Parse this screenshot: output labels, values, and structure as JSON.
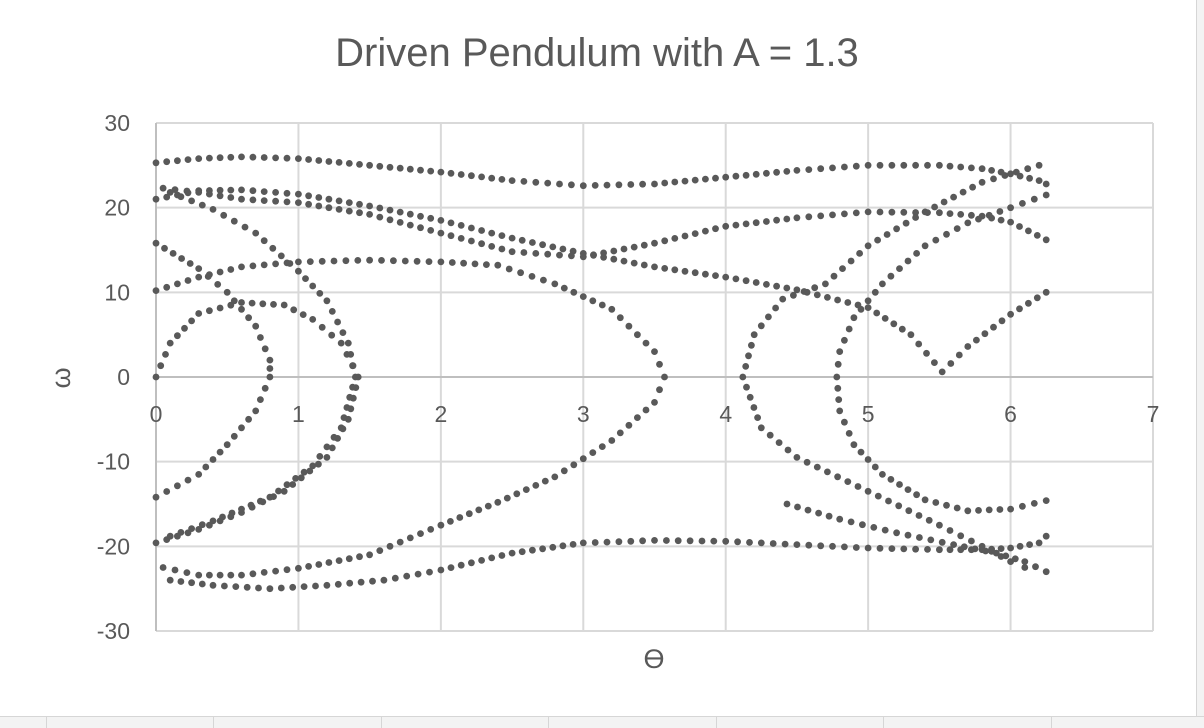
{
  "chart_data": {
    "type": "scatter",
    "title": "Driven Pendulum with A = 1.3",
    "xlabel": "ϴ",
    "ylabel": "ω",
    "xlim": [
      0,
      7
    ],
    "ylim": [
      -30,
      30
    ],
    "x_ticks": [
      "0",
      "1",
      "2",
      "3",
      "4",
      "5",
      "6",
      "7"
    ],
    "y_ticks": [
      "30",
      "20",
      "10",
      "0",
      "-10",
      "-20",
      "-30"
    ],
    "grid": true,
    "legend": "none",
    "marker_color": "#595959",
    "series": [
      {
        "values": [
          [
            0.0,
            25.3
          ],
          [
            0.3,
            25.8
          ],
          [
            0.6,
            26.0
          ],
          [
            1.0,
            25.8
          ],
          [
            1.5,
            25.0
          ],
          [
            2.0,
            24.2
          ],
          [
            2.5,
            23.2
          ],
          [
            3.0,
            22.6
          ],
          [
            3.5,
            22.8
          ],
          [
            4.0,
            23.6
          ],
          [
            4.5,
            24.4
          ],
          [
            5.0,
            25.0
          ],
          [
            5.5,
            25.0
          ],
          [
            5.8,
            24.6
          ],
          [
            6.0,
            24.0
          ],
          [
            6.2,
            23.2
          ],
          [
            6.25,
            22.8
          ]
        ]
      },
      {
        "values": [
          [
            0.0,
            21.0
          ],
          [
            0.3,
            22.0
          ],
          [
            0.6,
            22.1
          ],
          [
            1.0,
            21.6
          ],
          [
            1.5,
            20.2
          ],
          [
            2.0,
            18.5
          ],
          [
            2.5,
            16.4
          ],
          [
            3.0,
            14.6
          ],
          [
            3.5,
            13.0
          ],
          [
            4.0,
            11.8
          ],
          [
            4.5,
            10.3
          ],
          [
            5.0,
            8.2
          ],
          [
            5.3,
            5.0
          ],
          [
            5.52,
            0.6
          ],
          [
            5.7,
            3.6
          ],
          [
            6.0,
            7.4
          ],
          [
            6.25,
            10.0
          ]
        ]
      },
      {
        "values": [
          [
            0.05,
            22.3
          ],
          [
            0.3,
            21.8
          ],
          [
            0.6,
            21.0
          ],
          [
            1.0,
            20.6
          ],
          [
            1.5,
            19.2
          ],
          [
            2.0,
            17.0
          ],
          [
            2.5,
            14.8
          ],
          [
            3.0,
            14.2
          ],
          [
            3.5,
            15.8
          ],
          [
            4.0,
            17.8
          ],
          [
            4.5,
            18.8
          ],
          [
            5.0,
            19.5
          ],
          [
            5.5,
            19.4
          ],
          [
            5.8,
            19.0
          ],
          [
            6.0,
            18.3
          ],
          [
            6.25,
            16.2
          ]
        ]
      },
      {
        "values": [
          [
            0.0,
            10.2
          ],
          [
            0.3,
            11.8
          ],
          [
            0.6,
            13.0
          ],
          [
            1.0,
            13.6
          ],
          [
            1.5,
            13.8
          ],
          [
            2.0,
            13.6
          ],
          [
            2.4,
            13.2
          ],
          [
            2.8,
            11.0
          ],
          [
            3.2,
            8.0
          ],
          [
            3.5,
            3.0
          ],
          [
            3.57,
            0.0
          ],
          [
            3.5,
            -3.0
          ],
          [
            3.2,
            -7.5
          ],
          [
            2.8,
            -11.8
          ],
          [
            2.4,
            -14.8
          ],
          [
            2.0,
            -17.5
          ],
          [
            1.5,
            -21.0
          ],
          [
            1.0,
            -22.6
          ],
          [
            0.6,
            -23.4
          ],
          [
            0.3,
            -23.4
          ],
          [
            0.05,
            -22.5
          ]
        ]
      },
      {
        "values": [
          [
            0.0,
            0.0
          ],
          [
            0.1,
            4.0
          ],
          [
            0.3,
            7.5
          ],
          [
            0.6,
            8.8
          ],
          [
            0.9,
            8.5
          ],
          [
            1.1,
            6.8
          ],
          [
            1.3,
            4.0
          ],
          [
            1.42,
            0.0
          ],
          [
            1.35,
            -5.0
          ],
          [
            1.2,
            -9.5
          ],
          [
            0.9,
            -13.5
          ],
          [
            0.6,
            -16.0
          ],
          [
            0.3,
            -18.0
          ],
          [
            0.0,
            -19.6
          ]
        ]
      },
      {
        "values": [
          [
            0.1,
            21.8
          ],
          [
            0.4,
            19.8
          ],
          [
            0.7,
            17.0
          ],
          [
            1.0,
            12.5
          ],
          [
            1.2,
            9.0
          ],
          [
            1.35,
            4.0
          ],
          [
            1.4,
            0.0
          ],
          [
            1.3,
            -6.0
          ],
          [
            1.1,
            -10.5
          ],
          [
            0.8,
            -14.2
          ],
          [
            0.4,
            -17.0
          ],
          [
            0.1,
            -18.8
          ]
        ]
      },
      {
        "values": [
          [
            0.0,
            15.8
          ],
          [
            0.3,
            12.8
          ],
          [
            0.5,
            10.0
          ],
          [
            0.7,
            6.0
          ],
          [
            0.8,
            2.0
          ],
          [
            0.8,
            0.0
          ],
          [
            0.7,
            -4.0
          ],
          [
            0.5,
            -8.0
          ],
          [
            0.3,
            -11.5
          ],
          [
            0.0,
            -14.2
          ]
        ]
      },
      {
        "values": [
          [
            0.1,
            -24.0
          ],
          [
            0.4,
            -24.6
          ],
          [
            0.8,
            -25.0
          ],
          [
            1.2,
            -24.6
          ],
          [
            1.6,
            -24.0
          ],
          [
            2.0,
            -22.8
          ],
          [
            2.5,
            -20.8
          ],
          [
            3.0,
            -19.6
          ],
          [
            3.5,
            -19.3
          ],
          [
            4.0,
            -19.4
          ],
          [
            4.5,
            -19.8
          ],
          [
            5.0,
            -20.2
          ],
          [
            5.5,
            -20.4
          ],
          [
            5.8,
            -20.4
          ],
          [
            6.0,
            -20.2
          ],
          [
            6.2,
            -19.6
          ],
          [
            6.25,
            -18.8
          ]
        ]
      },
      {
        "values": [
          [
            6.25,
            21.5
          ],
          [
            6.0,
            20.0
          ],
          [
            5.7,
            18.2
          ],
          [
            5.4,
            15.5
          ],
          [
            5.1,
            11.0
          ],
          [
            4.9,
            7.0
          ],
          [
            4.8,
            3.0
          ],
          [
            4.78,
            0.0
          ],
          [
            4.8,
            -4.0
          ],
          [
            4.9,
            -8.0
          ],
          [
            5.1,
            -11.5
          ],
          [
            5.4,
            -14.5
          ],
          [
            5.7,
            -15.8
          ],
          [
            6.0,
            -15.6
          ],
          [
            6.25,
            -14.6
          ]
        ]
      },
      {
        "values": [
          [
            6.2,
            25.0
          ],
          [
            5.8,
            23.0
          ],
          [
            5.4,
            19.5
          ],
          [
            5.0,
            15.5
          ],
          [
            4.7,
            11.0
          ],
          [
            4.4,
            9.2
          ],
          [
            4.2,
            5.0
          ],
          [
            4.12,
            0.0
          ],
          [
            4.25,
            -6.0
          ],
          [
            4.5,
            -9.5
          ],
          [
            5.0,
            -13.5
          ],
          [
            5.5,
            -17.5
          ],
          [
            5.8,
            -20.0
          ],
          [
            6.0,
            -21.8
          ],
          [
            6.1,
            -22.5
          ]
        ]
      },
      {
        "values": [
          [
            4.43,
            -15.0
          ],
          [
            4.8,
            -16.8
          ],
          [
            5.2,
            -18.4
          ],
          [
            5.6,
            -19.8
          ],
          [
            5.9,
            -20.8
          ],
          [
            6.1,
            -21.8
          ],
          [
            6.25,
            -23.0
          ]
        ]
      }
    ]
  }
}
